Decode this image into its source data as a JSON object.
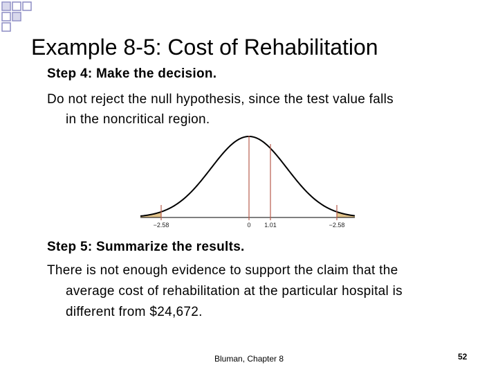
{
  "title": "Example 8-5: Cost of Rehabilitation",
  "step4": {
    "heading": "Step 4: Make the decision.",
    "lines": [
      "Do not reject the null hypothesis, since the test value falls",
      "in the noncritical region."
    ]
  },
  "figure": {
    "labels": [
      "−2.58",
      "0",
      "1.01",
      "−2.58"
    ]
  },
  "step5": {
    "heading": "Step 5: Summarize the results.",
    "lines": [
      "There is not enough evidence to support the claim that the",
      "average cost of rehabilitation at the particular hospital is",
      "different from $24,672."
    ]
  },
  "footer": "Bluman, Chapter 8",
  "page_number": "52"
}
